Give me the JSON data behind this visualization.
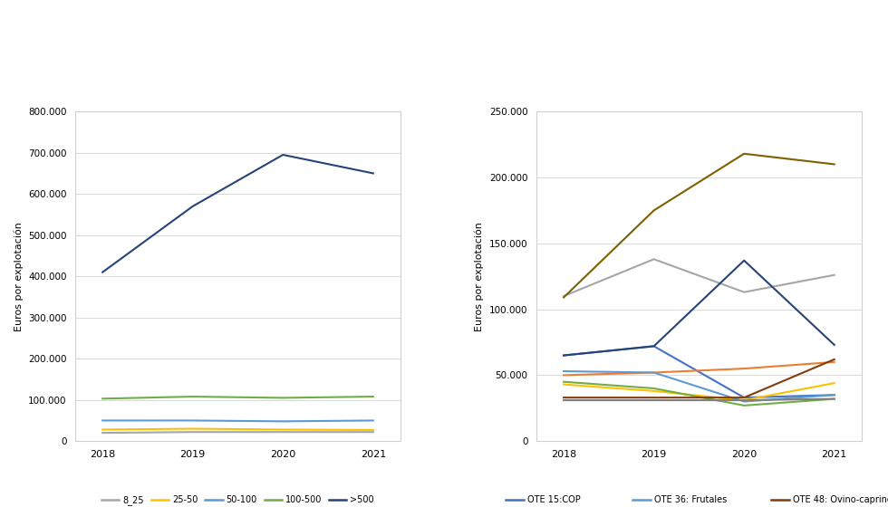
{
  "years": [
    2018,
    2019,
    2020,
    2021
  ],
  "left_chart": {
    "series": {
      "8_25": [
        20000,
        22000,
        22000,
        22000
      ],
      "25-50": [
        28000,
        30000,
        28000,
        27000
      ],
      "50-100": [
        50000,
        50000,
        48000,
        50000
      ],
      "100-500": [
        103000,
        108000,
        105000,
        108000
      ],
      ">500": [
        410000,
        570000,
        695000,
        650000
      ]
    },
    "colors": {
      "8_25": "#a6a6a6",
      "25-50": "#ffc000",
      "50-100": "#5b9bd5",
      "100-500": "#70ad47",
      ">500": "#264478"
    },
    "ylabel": "Euros por explotación",
    "ylim": [
      0,
      800000
    ],
    "yticks": [
      0,
      100000,
      200000,
      300000,
      400000,
      500000,
      600000,
      700000,
      800000
    ]
  },
  "right_chart": {
    "series": {
      "OTE 15:COP": [
        65000,
        72000,
        33000,
        35000
      ],
      "OTE 16: Otros anuales": [
        50000,
        52000,
        55000,
        60000
      ],
      "OTE 20: Hortícolas": [
        110000,
        138000,
        113000,
        126000
      ],
      "OTE 35: Viñedo": [
        43000,
        38000,
        31000,
        44000
      ],
      "OTE 36: Frutales": [
        53000,
        52000,
        30000,
        35000
      ],
      "OTE 37: Olivar": [
        45000,
        40000,
        27000,
        32000
      ],
      "OTE 45: Vacuno de leche": [
        65000,
        72000,
        137000,
        73000
      ],
      "OTE 48: Ovino-caprino": [
        33000,
        33000,
        33000,
        62000
      ],
      "OTE 49: Vacuno carne": [
        31000,
        31000,
        31000,
        32000
      ],
      "OTE 50: Granívoros": [
        109000,
        175000,
        218000,
        210000
      ]
    },
    "colors": {
      "OTE 15:COP": "#4472c4",
      "OTE 16: Otros anuales": "#ed7d31",
      "OTE 20: Hortícolas": "#a6a6a6",
      "OTE 35: Viñedo": "#ffc000",
      "OTE 36: Frutales": "#5b9bd5",
      "OTE 37: Olivar": "#70ad47",
      "OTE 45: Vacuno de leche": "#264478",
      "OTE 48: Ovino-caprino": "#843c0c",
      "OTE 49: Vacuno carne": "#7f7f7f",
      "OTE 50: Granívoros": "#7f6000"
    },
    "ylabel": "Euros por explotación",
    "ylim": [
      0,
      250000
    ],
    "yticks": [
      0,
      50000,
      100000,
      150000,
      200000,
      250000
    ]
  },
  "background_color": "#ffffff",
  "grid_color": "#d9d9d9",
  "border_color": "#d0d0d0"
}
